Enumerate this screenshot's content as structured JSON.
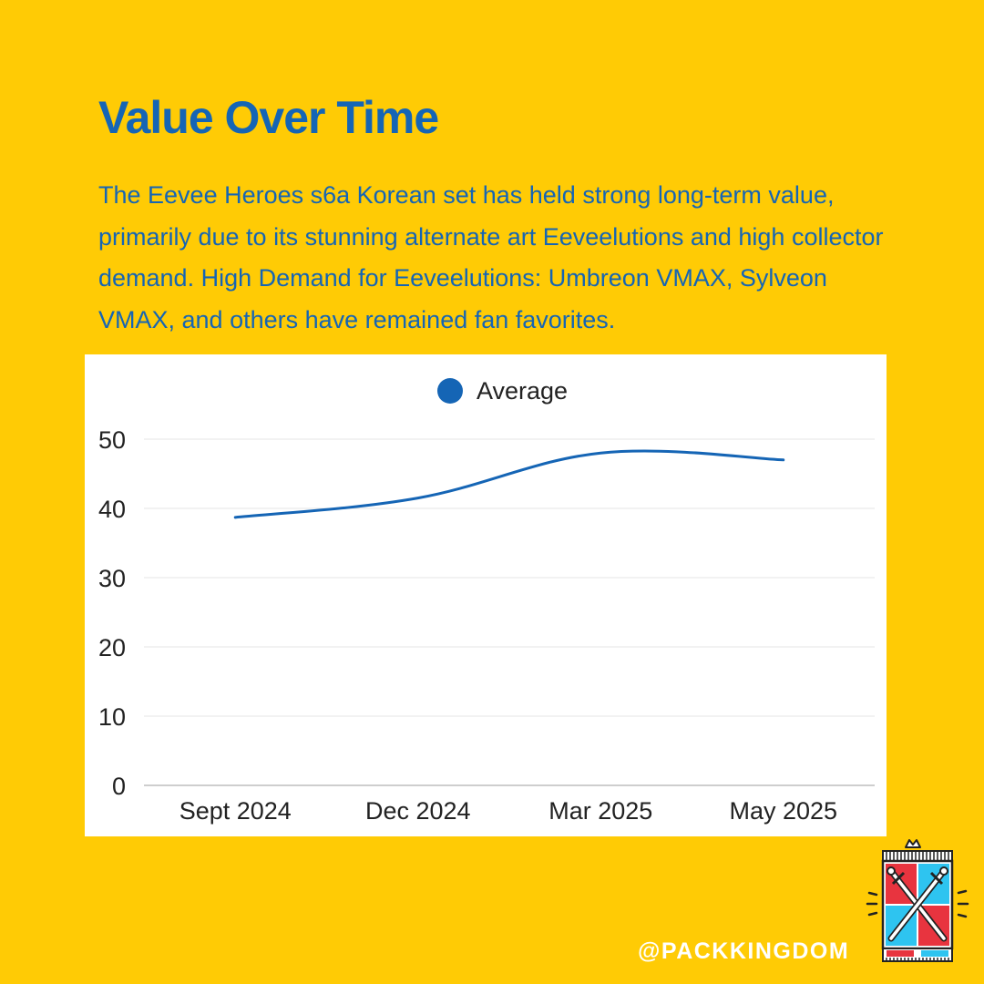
{
  "header": {
    "title": "Value Over Time",
    "description": "The Eevee Heroes s6a Korean set has held strong long-term value, primarily due to its stunning alternate art Eeveelutions and high collector demand. High Demand for Eeveelutions: Umbreon VMAX, Sylveon VMAX, and others have remained fan favorites."
  },
  "chart_data": {
    "type": "line",
    "title": "",
    "xlabel": "",
    "ylabel": "",
    "categories": [
      "Sept 2024",
      "Dec 2024",
      "Mar 2025",
      "May 2025"
    ],
    "series": [
      {
        "name": "Average",
        "values": [
          38.7,
          41.5,
          48.0,
          47.0
        ],
        "color": "#1565B5"
      }
    ],
    "ylim": [
      0,
      50
    ],
    "yticks": [
      0,
      10,
      20,
      30,
      40,
      50
    ],
    "grid": true,
    "legend": "top-center"
  },
  "footer": {
    "handle": "@PACKKINGDOM",
    "logo_icon": "crossed-swords-shield-icon"
  },
  "colors": {
    "background": "#FFCB05",
    "accent": "#1565B5",
    "card": "#FFFFFF"
  }
}
